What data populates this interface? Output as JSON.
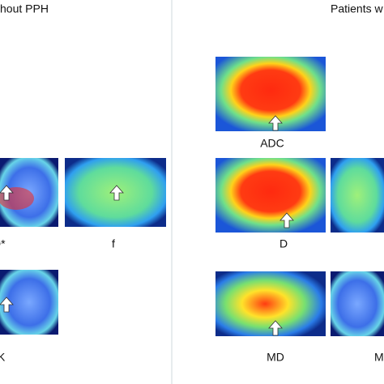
{
  "header": {
    "left_title": "hout PPH",
    "right_title": "Patients w"
  },
  "panels": [
    {
      "label": "D*"
    },
    {
      "label": "f"
    },
    {
      "label": "K"
    },
    {
      "label": "ADC"
    },
    {
      "label": "D"
    },
    {
      "label": "MD"
    },
    {
      "label": "M"
    }
  ]
}
